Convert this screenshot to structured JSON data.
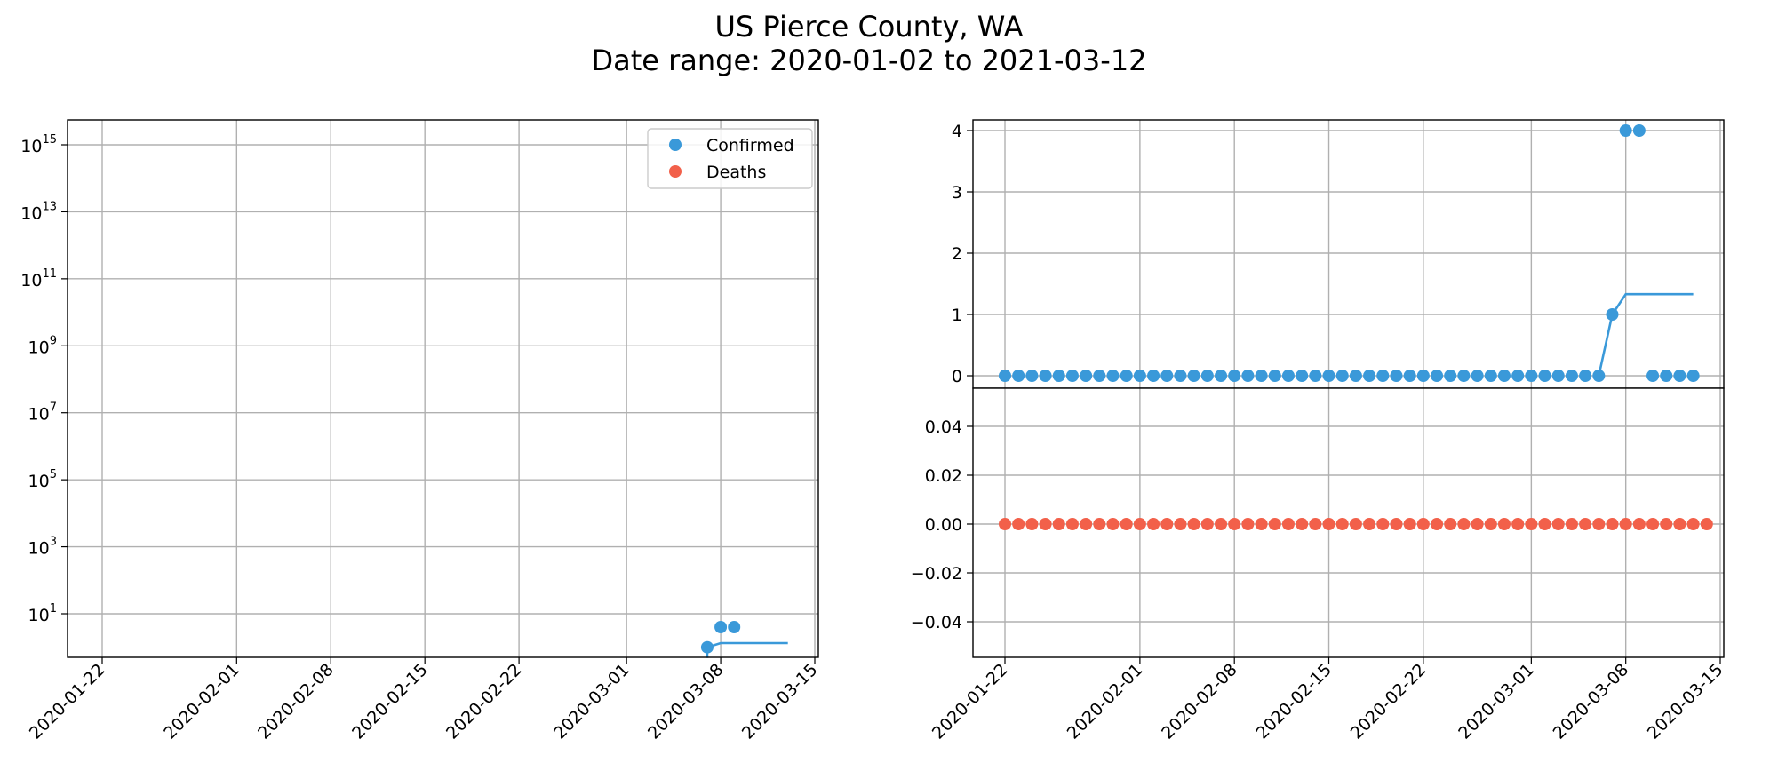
{
  "figure": {
    "title_line1": "US Pierce County, WA",
    "title_line2": "Date range: 2020-01-02 to 2021-03-12"
  },
  "colors": {
    "confirmed": "#3a99d9",
    "deaths": "#f2604a",
    "grid": "#b0b0b0",
    "axis": "#000000"
  },
  "chart_data": [
    {
      "type": "scatter",
      "scale": "log",
      "grid": true,
      "legend_position": "top-right",
      "x_ticks": [
        "2020-01-22",
        "2020-02-01",
        "2020-02-08",
        "2020-02-15",
        "2020-02-22",
        "2020-03-01",
        "2020-03-08",
        "2020-03-15"
      ],
      "y_ticks": [
        {
          "exp": 15,
          "label": "10",
          "sup": "15"
        },
        {
          "exp": 13,
          "label": "10",
          "sup": "13"
        },
        {
          "exp": 11,
          "label": "10",
          "sup": "11"
        },
        {
          "exp": 9,
          "label": "10",
          "sup": "9"
        },
        {
          "exp": 7,
          "label": "10",
          "sup": "7"
        },
        {
          "exp": 5,
          "label": "10",
          "sup": "5"
        },
        {
          "exp": 3,
          "label": "10",
          "sup": "3"
        },
        {
          "exp": 1,
          "label": "10",
          "sup": "1"
        }
      ],
      "legend": [
        {
          "label": "Confirmed",
          "series": "confirmed"
        },
        {
          "label": "Deaths",
          "series": "deaths"
        }
      ],
      "series": [
        {
          "name": "Confirmed",
          "color_key": "confirmed",
          "points": [
            {
              "date": "2020-03-07",
              "value": 1
            },
            {
              "date": "2020-03-08",
              "value": 4
            },
            {
              "date": "2020-03-09",
              "value": 4
            }
          ]
        },
        {
          "name": "Confirmed",
          "style": "line",
          "color_key": "confirmed",
          "points": [
            {
              "date": "2020-03-07",
              "value": 1
            },
            {
              "date": "2020-03-08",
              "value": 1.33
            },
            {
              "date": "2020-03-13",
              "value": 1.33
            }
          ]
        }
      ]
    },
    {
      "type": "scatter",
      "grid": true,
      "ylim": [
        -0.2,
        4.2
      ],
      "y_ticks": [
        0,
        1,
        2,
        3,
        4
      ],
      "series": [
        {
          "name": "Confirmed",
          "color_key": "confirmed",
          "start_date": "2020-01-22",
          "values": [
            0,
            0,
            0,
            0,
            0,
            0,
            0,
            0,
            0,
            0,
            0,
            0,
            0,
            0,
            0,
            0,
            0,
            0,
            0,
            0,
            0,
            0,
            0,
            0,
            0,
            0,
            0,
            0,
            0,
            0,
            0,
            0,
            0,
            0,
            0,
            0,
            0,
            0,
            0,
            0,
            0,
            0,
            0,
            0,
            0,
            1,
            4,
            4,
            0,
            0,
            0,
            0
          ]
        },
        {
          "name": "Confirmed",
          "style": "line",
          "color_key": "confirmed",
          "points": [
            {
              "date": "2020-03-06",
              "value": 0
            },
            {
              "date": "2020-03-07",
              "value": 1
            },
            {
              "date": "2020-03-08",
              "value": 1.33
            },
            {
              "date": "2020-03-13",
              "value": 1.33
            }
          ]
        }
      ]
    },
    {
      "type": "scatter",
      "grid": true,
      "ylim": [
        -0.055,
        0.055
      ],
      "x_ticks": [
        "2020-01-22",
        "2020-02-01",
        "2020-02-08",
        "2020-02-15",
        "2020-02-22",
        "2020-03-01",
        "2020-03-08",
        "2020-03-15"
      ],
      "y_ticks": [
        {
          "value": 0.04,
          "label": "0.04"
        },
        {
          "value": 0.02,
          "label": "0.02"
        },
        {
          "value": 0.0,
          "label": "0.00"
        },
        {
          "value": -0.02,
          "label": "−0.02"
        },
        {
          "value": -0.04,
          "label": "−0.04"
        }
      ],
      "series": [
        {
          "name": "Deaths",
          "color_key": "deaths",
          "start_date": "2020-01-22",
          "values": [
            0,
            0,
            0,
            0,
            0,
            0,
            0,
            0,
            0,
            0,
            0,
            0,
            0,
            0,
            0,
            0,
            0,
            0,
            0,
            0,
            0,
            0,
            0,
            0,
            0,
            0,
            0,
            0,
            0,
            0,
            0,
            0,
            0,
            0,
            0,
            0,
            0,
            0,
            0,
            0,
            0,
            0,
            0,
            0,
            0,
            0,
            0,
            0,
            0,
            0,
            0,
            0,
            0
          ]
        }
      ]
    }
  ]
}
